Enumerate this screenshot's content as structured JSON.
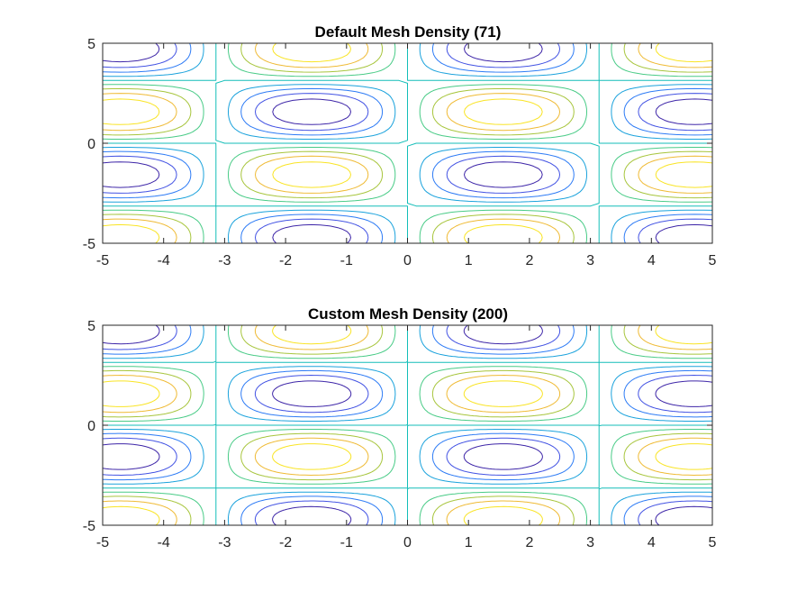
{
  "chart_data": [
    {
      "type": "contour",
      "title": "Default Mesh Density (71)",
      "function": "sin(x)*sin(y)",
      "mesh_density": 71,
      "xlim": [
        -5,
        5
      ],
      "ylim": [
        -5,
        5
      ],
      "xticks": [
        -5,
        -4,
        -3,
        -2,
        -1,
        0,
        1,
        2,
        3,
        4,
        5
      ],
      "yticks": [
        -5,
        0,
        5
      ],
      "contour_levels": [
        -0.8,
        -0.6,
        -0.4,
        -0.2,
        0,
        0.2,
        0.4,
        0.6,
        0.8
      ],
      "grid": false,
      "colormap": "parula"
    },
    {
      "type": "contour",
      "title": "Custom Mesh Density (200)",
      "function": "sin(x)*sin(y)",
      "mesh_density": 200,
      "xlim": [
        -5,
        5
      ],
      "ylim": [
        -5,
        5
      ],
      "xticks": [
        -5,
        -4,
        -3,
        -2,
        -1,
        0,
        1,
        2,
        3,
        4,
        5
      ],
      "yticks": [
        -5,
        0,
        5
      ],
      "contour_levels": [
        -0.8,
        -0.6,
        -0.4,
        -0.2,
        0,
        0.2,
        0.4,
        0.6,
        0.8
      ],
      "grid": false,
      "colormap": "parula"
    }
  ],
  "colors": {
    "axes": "#262626",
    "levels": [
      "#3e26a8",
      "#4252e3",
      "#2d7bf5",
      "#1aa2dc",
      "#13beb8",
      "#48cb86",
      "#a7c53c",
      "#efba34",
      "#f9e425"
    ]
  }
}
